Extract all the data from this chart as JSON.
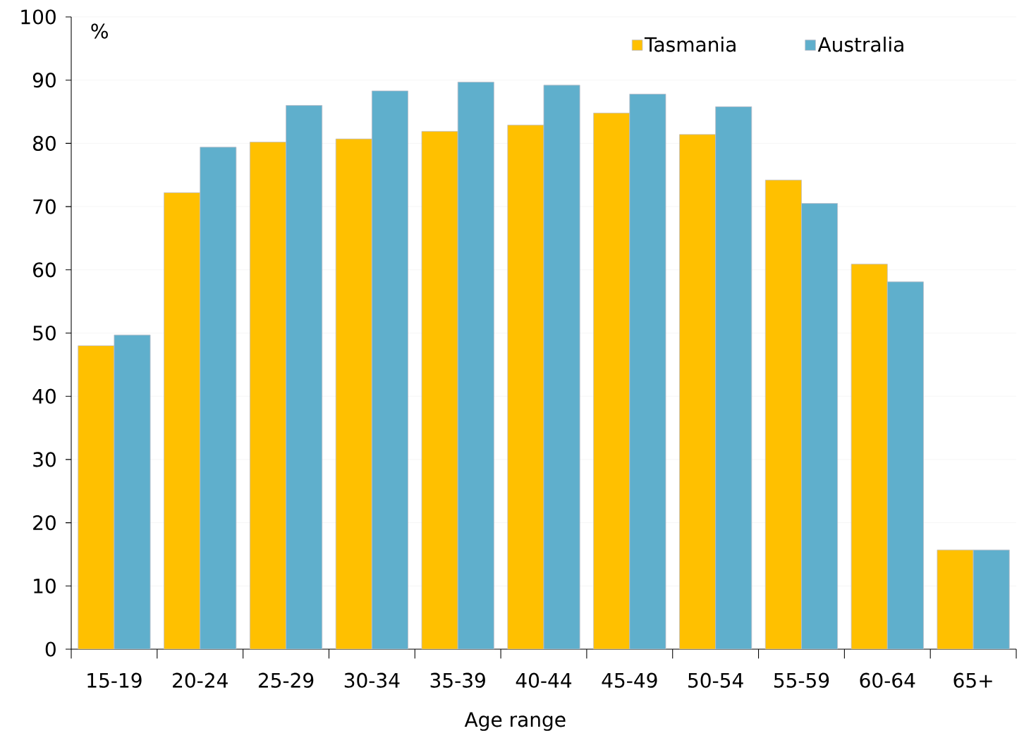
{
  "chart_data": {
    "type": "bar",
    "xlabel": "Age range",
    "ylabel": "%",
    "categories": [
      "15-19",
      "20-24",
      "25-29",
      "30-34",
      "35-39",
      "40-44",
      "45-49",
      "50-54",
      "55-59",
      "60-64",
      "65+"
    ],
    "series": [
      {
        "name": "Tasmania",
        "color": "#ffc000",
        "values": [
          48.0,
          72.2,
          80.2,
          80.7,
          81.9,
          82.9,
          84.8,
          81.4,
          74.2,
          60.9,
          15.7
        ]
      },
      {
        "name": "Australia",
        "color": "#5fafcc",
        "values": [
          49.7,
          79.4,
          86.0,
          88.3,
          89.7,
          89.2,
          87.8,
          85.8,
          70.5,
          58.1,
          15.7
        ]
      }
    ],
    "ylim": [
      0,
      100
    ],
    "yticks": [
      0,
      10,
      20,
      30,
      40,
      50,
      60,
      70,
      80,
      90,
      100
    ],
    "grid": "y",
    "legend": "top right"
  }
}
